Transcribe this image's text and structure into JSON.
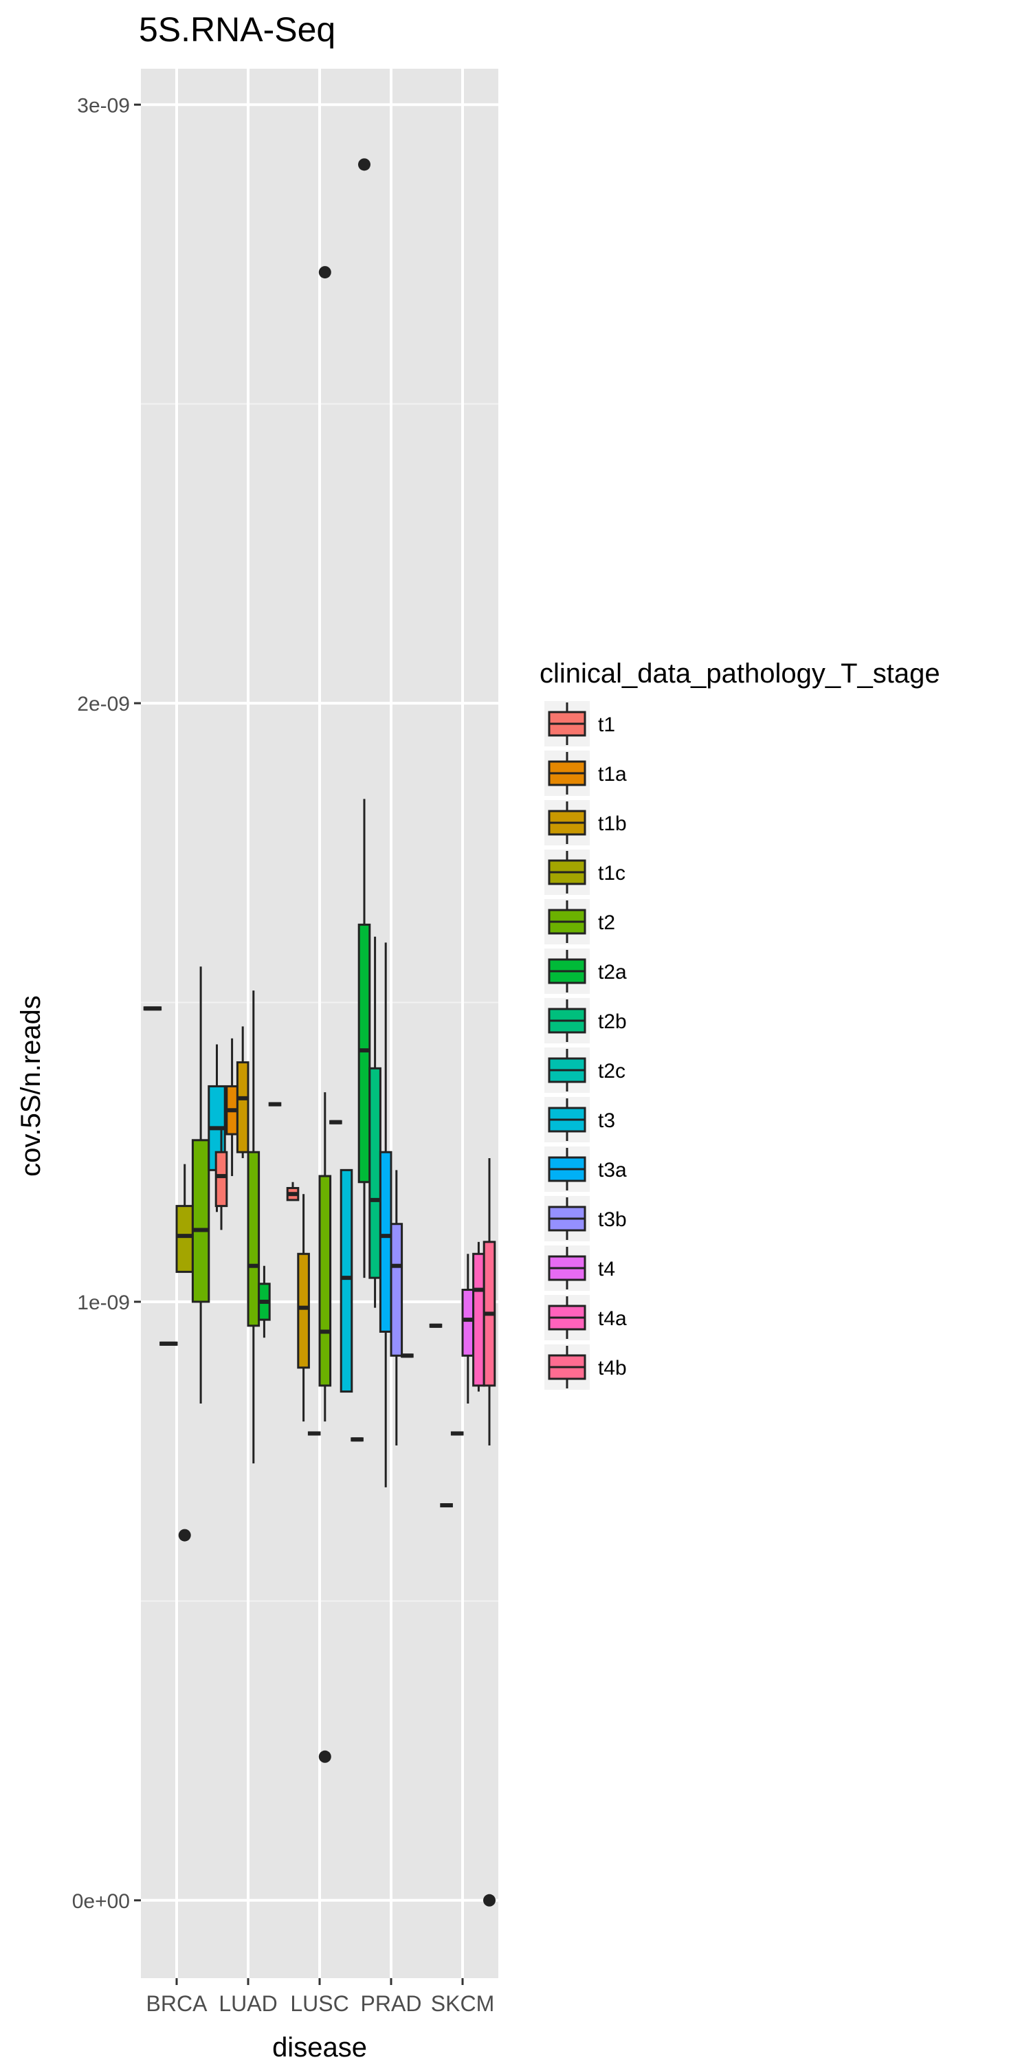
{
  "chart_data": {
    "type": "boxplot",
    "title": "5S.RNA-Seq",
    "xlabel": "disease",
    "ylabel": "cov.5S/n.reads",
    "categories": [
      "BRCA",
      "LUAD",
      "LUSC",
      "PRAD",
      "SKCM"
    ],
    "y_ticks": [
      "0e+00",
      "1e-09",
      "2e-09",
      "3e-09"
    ],
    "y_tick_values": [
      0,
      1e-09,
      2e-09,
      3e-09
    ],
    "ylim": [
      -1.3e-10,
      3.06e-09
    ],
    "grid": true,
    "legend": {
      "title": "clinical_data_pathology_T_stage",
      "position": "right",
      "items": [
        {
          "label": "t1",
          "color": "#F8766D"
        },
        {
          "label": "t1a",
          "color": "#E58700"
        },
        {
          "label": "t1b",
          "color": "#C99800"
        },
        {
          "label": "t1c",
          "color": "#A3A500"
        },
        {
          "label": "t2",
          "color": "#6BB100"
        },
        {
          "label": "t2a",
          "color": "#00BA38"
        },
        {
          "label": "t2b",
          "color": "#00BF7D"
        },
        {
          "label": "t2c",
          "color": "#00C0AF"
        },
        {
          "label": "t3",
          "color": "#00BCD8"
        },
        {
          "label": "t3a",
          "color": "#00B0F6"
        },
        {
          "label": "t3b",
          "color": "#9590FF"
        },
        {
          "label": "t4",
          "color": "#E76BF3"
        },
        {
          "label": "t4a",
          "color": "#FF62BC"
        },
        {
          "label": "t4b",
          "color": "#FF6C91"
        }
      ]
    },
    "boxes": [
      {
        "category": "BRCA",
        "stage": "t1",
        "slot": 0,
        "n": 4,
        "min": 1.49e-09,
        "q1": 1.49e-09,
        "median": 1.49e-09,
        "q3": 1.49e-09,
        "max": 1.49e-09,
        "outliers": []
      },
      {
        "category": "BRCA",
        "stage": "t1a",
        "slot": 1,
        "n": 4,
        "min": 9.3e-10,
        "q1": 9.3e-10,
        "median": 9.3e-10,
        "q3": 9.3e-10,
        "max": 9.3e-10,
        "outliers": []
      },
      {
        "category": "BRCA",
        "stage": "t1c",
        "slot": 2,
        "n": 4,
        "min": 1.05e-09,
        "q1": 1.05e-09,
        "median": 1.11e-09,
        "q3": 1.16e-09,
        "max": 1.23e-09,
        "outliers": [
          6.1e-10
        ]
      },
      {
        "category": "BRCA",
        "stage": "t2",
        "slot": 3,
        "n": 4,
        "min": 8.3e-10,
        "q1": 1e-09,
        "median": 1.12e-09,
        "q3": 1.27e-09,
        "max": 1.56e-09,
        "outliers": []
      },
      {
        "category": "BRCA",
        "stage": "t3",
        "slot": 4,
        "n": 4,
        "min": 1.15e-09,
        "q1": 1.22e-09,
        "median": 1.29e-09,
        "q3": 1.36e-09,
        "max": 1.43e-09,
        "outliers": []
      },
      {
        "category": "LUAD",
        "stage": "t1",
        "slot": 0,
        "n": 6,
        "min": 1.12e-09,
        "q1": 1.16e-09,
        "median": 1.21e-09,
        "q3": 1.25e-09,
        "max": 1.29e-09,
        "outliers": []
      },
      {
        "category": "LUAD",
        "stage": "t1a",
        "slot": 1,
        "n": 6,
        "min": 1.21e-09,
        "q1": 1.28e-09,
        "median": 1.32e-09,
        "q3": 1.36e-09,
        "max": 1.44e-09,
        "outliers": []
      },
      {
        "category": "LUAD",
        "stage": "t1b",
        "slot": 2,
        "n": 6,
        "min": 1.24e-09,
        "q1": 1.25e-09,
        "median": 1.34e-09,
        "q3": 1.4e-09,
        "max": 1.46e-09,
        "outliers": []
      },
      {
        "category": "LUAD",
        "stage": "t2",
        "slot": 3,
        "n": 6,
        "min": 7.3e-10,
        "q1": 9.6e-10,
        "median": 1.06e-09,
        "q3": 1.25e-09,
        "max": 1.52e-09,
        "outliers": []
      },
      {
        "category": "LUAD",
        "stage": "t2a",
        "slot": 4,
        "n": 6,
        "min": 9.4e-10,
        "q1": 9.7e-10,
        "median": 1e-09,
        "q3": 1.03e-09,
        "max": 1.06e-09,
        "outliers": []
      },
      {
        "category": "LUAD",
        "stage": "t3",
        "slot": 5,
        "n": 6,
        "min": 1.33e-09,
        "q1": 1.33e-09,
        "median": 1.33e-09,
        "q3": 1.33e-09,
        "max": 1.33e-09,
        "outliers": []
      },
      {
        "category": "LUSC",
        "stage": "t1",
        "slot": 0,
        "n": 6,
        "min": 1.17e-09,
        "q1": 1.17e-09,
        "median": 1.18e-09,
        "q3": 1.19e-09,
        "max": 1.2e-09,
        "outliers": []
      },
      {
        "category": "LUSC",
        "stage": "t1b",
        "slot": 1,
        "n": 6,
        "min": 8e-10,
        "q1": 8.9e-10,
        "median": 9.9e-10,
        "q3": 1.08e-09,
        "max": 1.18e-09,
        "outliers": []
      },
      {
        "category": "LUSC",
        "stage": "t1c",
        "slot": 2,
        "n": 6,
        "min": 7.8e-10,
        "q1": 7.8e-10,
        "median": 7.8e-10,
        "q3": 7.8e-10,
        "max": 7.8e-10,
        "outliers": []
      },
      {
        "category": "LUSC",
        "stage": "t2",
        "slot": 3,
        "n": 6,
        "min": 8e-10,
        "q1": 8.6e-10,
        "median": 9.5e-10,
        "q3": 1.21e-09,
        "max": 1.35e-09,
        "outliers": [
          2.4e-10,
          2.72e-09
        ]
      },
      {
        "category": "LUSC",
        "stage": "t2a",
        "slot": 4,
        "n": 6,
        "min": 1.3e-09,
        "q1": 1.3e-09,
        "median": 1.3e-09,
        "q3": 1.3e-09,
        "max": 1.3e-09,
        "outliers": []
      },
      {
        "category": "LUSC",
        "stage": "t3",
        "slot": 5,
        "n": 6,
        "min": 8.5e-10,
        "q1": 8.5e-10,
        "median": 1.04e-09,
        "q3": 1.22e-09,
        "max": 1.22e-09,
        "outliers": []
      },
      {
        "category": "LUSC",
        "stage": "t3",
        "slot": 6,
        "n": 6,
        "min": 7.7e-10,
        "q1": 7.7e-10,
        "median": 7.7e-10,
        "q3": 7.7e-10,
        "max": 7.7e-10,
        "outliers": []
      },
      {
        "category": "PRAD",
        "stage": "t2a",
        "slot": 0,
        "n": 6,
        "min": 1.04e-09,
        "q1": 1.2e-09,
        "median": 1.42e-09,
        "q3": 1.63e-09,
        "max": 1.84e-09,
        "outliers": [
          2.9e-09
        ]
      },
      {
        "category": "PRAD",
        "stage": "t2b",
        "slot": 1,
        "n": 6,
        "min": 9.9e-10,
        "q1": 1.04e-09,
        "median": 1.17e-09,
        "q3": 1.39e-09,
        "max": 1.61e-09,
        "outliers": []
      },
      {
        "category": "PRAD",
        "stage": "t3a",
        "slot": 2,
        "n": 6,
        "min": 6.9e-10,
        "q1": 9.5e-10,
        "median": 1.11e-09,
        "q3": 1.25e-09,
        "max": 1.6e-09,
        "outliers": []
      },
      {
        "category": "PRAD",
        "stage": "t3b",
        "slot": 3,
        "n": 6,
        "min": 7.6e-10,
        "q1": 9.1e-10,
        "median": 1.06e-09,
        "q3": 1.13e-09,
        "max": 1.22e-09,
        "outliers": []
      },
      {
        "category": "PRAD",
        "stage": "t4",
        "slot": 4,
        "n": 6,
        "min": 9.1e-10,
        "q1": 9.1e-10,
        "median": 9.1e-10,
        "q3": 9.1e-10,
        "max": 9.1e-10,
        "outliers": []
      },
      {
        "category": "SKCM",
        "stage": "t1a",
        "slot": 0,
        "n": 6,
        "min": 9.6e-10,
        "q1": 9.6e-10,
        "median": 9.6e-10,
        "q3": 9.6e-10,
        "max": 9.6e-10,
        "outliers": []
      },
      {
        "category": "SKCM",
        "stage": "t2a",
        "slot": 1,
        "n": 6,
        "min": 6.6e-10,
        "q1": 6.6e-10,
        "median": 6.6e-10,
        "q3": 6.6e-10,
        "max": 6.6e-10,
        "outliers": []
      },
      {
        "category": "SKCM",
        "stage": "t3a",
        "slot": 2,
        "n": 6,
        "min": 7.8e-10,
        "q1": 7.8e-10,
        "median": 7.8e-10,
        "q3": 7.8e-10,
        "max": 7.8e-10,
        "outliers": []
      },
      {
        "category": "SKCM",
        "stage": "t4",
        "slot": 3,
        "n": 6,
        "min": 8.3e-10,
        "q1": 9.1e-10,
        "median": 9.7e-10,
        "q3": 1.02e-09,
        "max": 1.08e-09,
        "outliers": []
      },
      {
        "category": "SKCM",
        "stage": "t4a",
        "slot": 4,
        "n": 6,
        "min": 8.5e-10,
        "q1": 8.6e-10,
        "median": 1.02e-09,
        "q3": 1.08e-09,
        "max": 1.1e-09,
        "outliers": []
      },
      {
        "category": "SKCM",
        "stage": "t4b",
        "slot": 5,
        "n": 6,
        "min": 7.6e-10,
        "q1": 8.6e-10,
        "median": 9.8e-10,
        "q3": 1.1e-09,
        "max": 1.24e-09,
        "outliers": [
          0.0
        ]
      }
    ]
  }
}
